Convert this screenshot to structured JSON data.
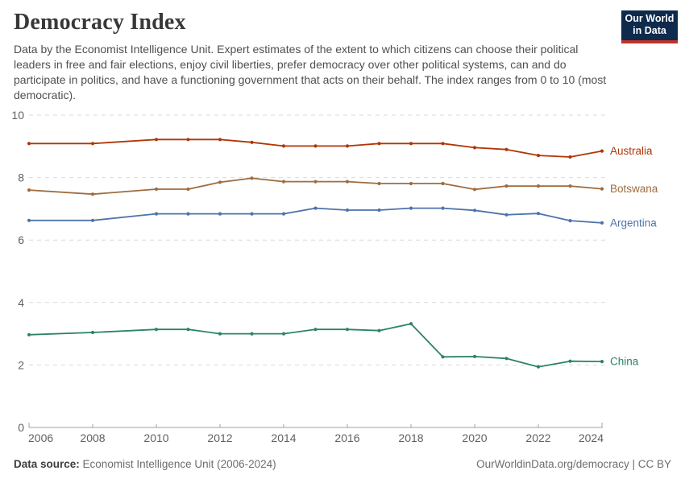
{
  "header": {
    "title": "Democracy Index",
    "subtitle": "Data by the Economist Intelligence Unit. Expert estimates of the extent to which citizens can choose their political leaders in free and fair elections, enjoy civil liberties, prefer democracy over other political systems, can and do participate in politics, and have a functioning government that acts on their behalf. The index ranges from 0 to 10 (most democratic).",
    "logo": {
      "line1": "Our World",
      "line2": "in Data",
      "background_color": "#0e2a4c",
      "accent_color": "#bb352a"
    }
  },
  "chart_data": {
    "type": "line",
    "title": "Democracy Index",
    "xlabel": "",
    "ylabel": "",
    "ylim": [
      0,
      10
    ],
    "yticks": [
      0,
      2,
      4,
      6,
      8,
      10
    ],
    "xticks": [
      2006,
      2008,
      2010,
      2012,
      2014,
      2016,
      2018,
      2020,
      2022,
      2024
    ],
    "grid": "horizontal-dashed",
    "legend_position": "right-end-labels",
    "x": [
      2006,
      2008,
      2010,
      2011,
      2012,
      2013,
      2014,
      2015,
      2016,
      2017,
      2018,
      2019,
      2020,
      2021,
      2022,
      2023,
      2024
    ],
    "series": [
      {
        "name": "Australia",
        "color": "#b13507",
        "values": [
          9.09,
          9.09,
          9.22,
          9.22,
          9.22,
          9.13,
          9.01,
          9.01,
          9.01,
          9.09,
          9.09,
          9.09,
          8.96,
          8.9,
          8.71,
          8.66,
          8.85
        ]
      },
      {
        "name": "Botswana",
        "color": "#9e6c3e",
        "values": [
          7.6,
          7.47,
          7.63,
          7.63,
          7.85,
          7.98,
          7.87,
          7.87,
          7.87,
          7.81,
          7.81,
          7.81,
          7.62,
          7.73,
          7.73,
          7.73,
          7.64
        ]
      },
      {
        "name": "Argentina",
        "color": "#4e72ab",
        "values": [
          6.63,
          6.63,
          6.84,
          6.84,
          6.84,
          6.84,
          6.84,
          7.02,
          6.96,
          6.96,
          7.02,
          7.02,
          6.95,
          6.81,
          6.85,
          6.62,
          6.55
        ]
      },
      {
        "name": "China",
        "color": "#2c8465",
        "values": [
          2.97,
          3.04,
          3.14,
          3.14,
          3.0,
          3.0,
          3.0,
          3.14,
          3.14,
          3.1,
          3.32,
          2.26,
          2.27,
          2.21,
          1.94,
          2.12,
          2.11
        ]
      }
    ],
    "axis_color": "#a0a0a0",
    "gridline_color": "#dadada"
  },
  "footer": {
    "source_label": "Data source:",
    "source_text": "Economist Intelligence Unit (2006-2024)",
    "link_text": "OurWorldinData.org/democracy | CC BY"
  }
}
